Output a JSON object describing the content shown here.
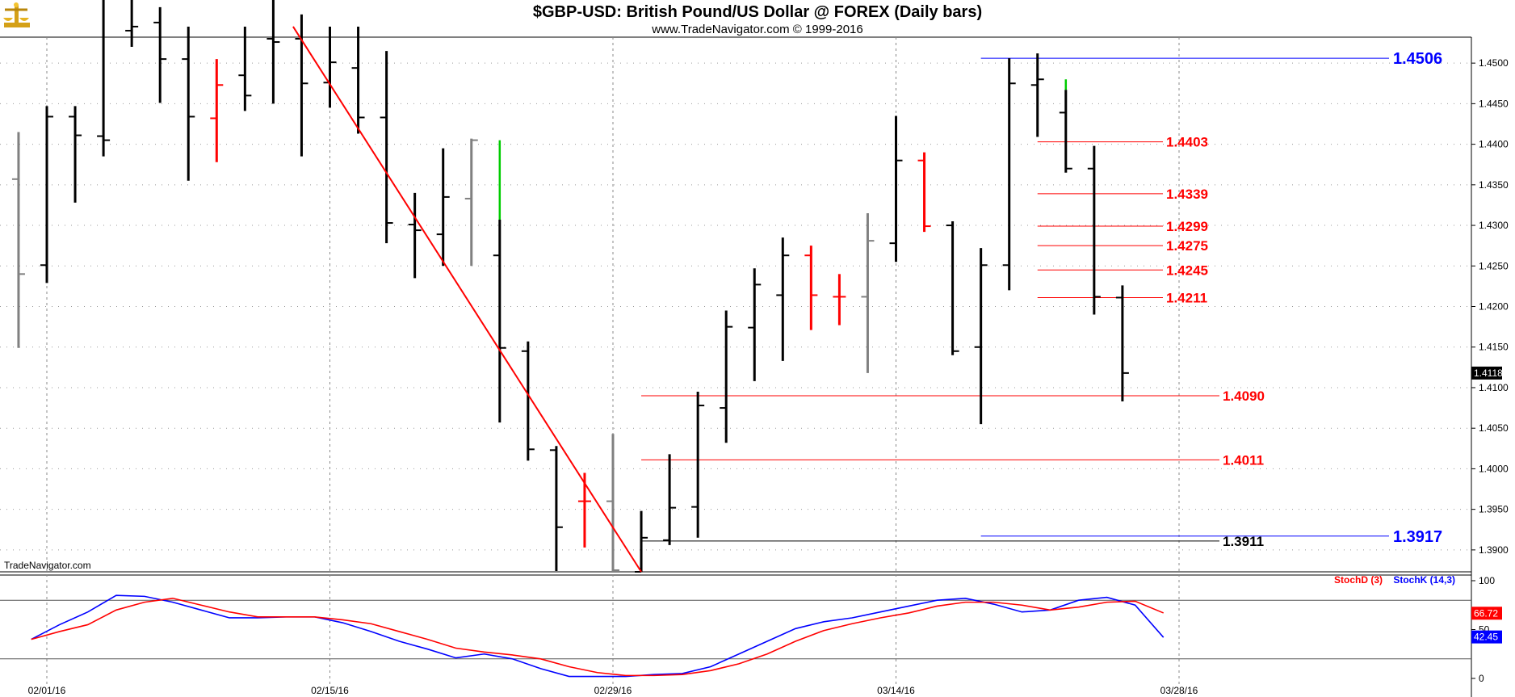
{
  "header": {
    "title": "$GBP-USD:  British Pound/US Dollar @ FOREX  (Daily bars)",
    "subtitle": "www.TradeNavigator.com © 1999-2016"
  },
  "watermark": "TradeNavigator.com",
  "icon": "gold-scale-logo-icon",
  "colors": {
    "up_bar": "#000000",
    "neutral_bar": "#808080",
    "red_bar": "#ff0000",
    "green_tail": "#00cc00",
    "level_red": "#ff0000",
    "level_blue": "#0000ff",
    "stoch_d": "#ff0000",
    "stoch_k": "#0000ff"
  },
  "chart_data": [
    {
      "type": "ohlc",
      "series_name": "$GBP-USD",
      "ylim": [
        1.3873,
        1.4532
      ],
      "y_ticks": [
        "1.4500",
        "1.4450",
        "1.4400",
        "1.4350",
        "1.4300",
        "1.4250",
        "1.4200",
        "1.4150",
        "1.4100",
        "1.4050",
        "1.4000",
        "1.3950",
        "1.3900"
      ],
      "x_ticks": [
        "02/01/16",
        "02/15/16",
        "02/29/16",
        "03/14/16",
        "03/28/16"
      ],
      "last_price": "1.4118",
      "bars": [
        {
          "slot": -1,
          "o": 1.4357,
          "h": 1.4415,
          "l": 1.4149,
          "c": 1.424,
          "col": "gray"
        },
        {
          "slot": 0,
          "o": 1.4251,
          "h": 1.4447,
          "l": 1.4229,
          "c": 1.4434,
          "col": "black"
        },
        {
          "slot": 1,
          "o": 1.4434,
          "h": 1.4447,
          "l": 1.4328,
          "c": 1.4411,
          "col": "black"
        },
        {
          "slot": 2,
          "o": 1.441,
          "h": 1.4617,
          "l": 1.4385,
          "c": 1.4405,
          "col": "black"
        },
        {
          "slot": 3,
          "o": 1.454,
          "h": 1.4617,
          "l": 1.452,
          "c": 1.4545,
          "col": "black"
        },
        {
          "slot": 4,
          "o": 1.455,
          "h": 1.4569,
          "l": 1.4451,
          "c": 1.4505,
          "col": "black"
        },
        {
          "slot": 5,
          "o": 1.4505,
          "h": 1.4545,
          "l": 1.4355,
          "c": 1.4434,
          "col": "black"
        },
        {
          "slot": 6,
          "o": 1.4432,
          "h": 1.4505,
          "l": 1.4378,
          "c": 1.4473,
          "col": "red"
        },
        {
          "slot": 7,
          "o": 1.4485,
          "h": 1.4545,
          "l": 1.4441,
          "c": 1.446,
          "col": "black"
        },
        {
          "slot": 8,
          "o": 1.453,
          "h": 1.461,
          "l": 1.445,
          "c": 1.4526,
          "col": "black"
        },
        {
          "slot": 9,
          "o": 1.453,
          "h": 1.456,
          "l": 1.4385,
          "c": 1.4475,
          "col": "black"
        },
        {
          "slot": 10,
          "o": 1.4476,
          "h": 1.4545,
          "l": 1.4445,
          "c": 1.4501,
          "col": "black"
        },
        {
          "slot": 11,
          "o": 1.4494,
          "h": 1.4545,
          "l": 1.4413,
          "c": 1.4433,
          "col": "black"
        },
        {
          "slot": 12,
          "o": 1.4433,
          "h": 1.4515,
          "l": 1.4278,
          "c": 1.4303,
          "col": "black"
        },
        {
          "slot": 13,
          "o": 1.4301,
          "h": 1.434,
          "l": 1.4235,
          "c": 1.4294,
          "col": "black"
        },
        {
          "slot": 14,
          "o": 1.4289,
          "h": 1.4395,
          "l": 1.425,
          "c": 1.4335,
          "col": "black"
        },
        {
          "slot": 15,
          "o": 1.4333,
          "h": 1.4407,
          "l": 1.425,
          "c": 1.4405,
          "col": "gray"
        },
        {
          "slot": 16,
          "o": 1.4263,
          "h": 1.4307,
          "l": 1.4057,
          "c": 1.4149,
          "col": "black",
          "green_top": 1.4405
        },
        {
          "slot": 17,
          "o": 1.4145,
          "h": 1.4157,
          "l": 1.401,
          "c": 1.4024,
          "col": "black"
        },
        {
          "slot": 18,
          "o": 1.4023,
          "h": 1.4028,
          "l": 1.3874,
          "c": 1.3928,
          "col": "black"
        },
        {
          "slot": 19,
          "o": 1.396,
          "h": 1.3995,
          "l": 1.3903,
          "c": 1.396,
          "col": "red"
        },
        {
          "slot": 20,
          "o": 1.396,
          "h": 1.4043,
          "l": 1.3873,
          "c": 1.3875,
          "col": "gray"
        },
        {
          "slot": 21,
          "o": 1.3873,
          "h": 1.3948,
          "l": 1.3873,
          "c": 1.3915,
          "col": "black"
        },
        {
          "slot": 22,
          "o": 1.3912,
          "h": 1.4018,
          "l": 1.3906,
          "c": 1.3952,
          "col": "black"
        },
        {
          "slot": 23,
          "o": 1.3953,
          "h": 1.4095,
          "l": 1.3915,
          "c": 1.4078,
          "col": "black"
        },
        {
          "slot": 24,
          "o": 1.4075,
          "h": 1.4195,
          "l": 1.4032,
          "c": 1.4175,
          "col": "black"
        },
        {
          "slot": 25,
          "o": 1.4174,
          "h": 1.4247,
          "l": 1.4108,
          "c": 1.4227,
          "col": "black"
        },
        {
          "slot": 26,
          "o": 1.4214,
          "h": 1.4285,
          "l": 1.4133,
          "c": 1.4263,
          "col": "black"
        },
        {
          "slot": 27,
          "o": 1.4263,
          "h": 1.4275,
          "l": 1.4171,
          "c": 1.4214,
          "col": "red"
        },
        {
          "slot": 28,
          "o": 1.4212,
          "h": 1.424,
          "l": 1.4177,
          "c": 1.4212,
          "col": "red"
        },
        {
          "slot": 29,
          "o": 1.4212,
          "h": 1.4315,
          "l": 1.4118,
          "c": 1.4281,
          "col": "gray"
        },
        {
          "slot": 30,
          "o": 1.4278,
          "h": 1.4435,
          "l": 1.4255,
          "c": 1.438,
          "col": "black"
        },
        {
          "slot": 31,
          "o": 1.438,
          "h": 1.439,
          "l": 1.4292,
          "c": 1.4299,
          "col": "red"
        },
        {
          "slot": 32,
          "o": 1.43,
          "h": 1.4305,
          "l": 1.414,
          "c": 1.4145,
          "col": "black"
        },
        {
          "slot": 33,
          "o": 1.415,
          "h": 1.4272,
          "l": 1.4055,
          "c": 1.4251,
          "col": "black"
        },
        {
          "slot": 34,
          "o": 1.4251,
          "h": 1.4506,
          "l": 1.422,
          "c": 1.4475,
          "col": "black"
        },
        {
          "slot": 35,
          "o": 1.4473,
          "h": 1.4512,
          "l": 1.4409,
          "c": 1.448,
          "col": "black"
        },
        {
          "slot": 36,
          "o": 1.4439,
          "h": 1.4467,
          "l": 1.4365,
          "c": 1.437,
          "col": "black",
          "green_top": 1.448
        },
        {
          "slot": 37,
          "o": 1.437,
          "h": 1.4398,
          "l": 1.419,
          "c": 1.4212,
          "col": "black"
        },
        {
          "slot": 38,
          "o": 1.4211,
          "h": 1.4226,
          "l": 1.4083,
          "c": 1.4118,
          "col": "black"
        }
      ],
      "trendline": {
        "from": {
          "slot": 8.7,
          "price": 1.4545
        },
        "to": {
          "slot": 21,
          "price": 1.3873
        }
      },
      "levels": [
        {
          "value": 1.4506,
          "label": "1.4506",
          "color": "blue",
          "from_slot": 33
        },
        {
          "value": 1.4403,
          "label": "1.4403",
          "color": "red",
          "from_slot": 35
        },
        {
          "value": 1.4339,
          "label": "1.4339",
          "color": "red",
          "from_slot": 35
        },
        {
          "value": 1.4299,
          "label": "1.4299",
          "color": "red",
          "from_slot": 35
        },
        {
          "value": 1.4275,
          "label": "1.4275",
          "color": "red",
          "from_slot": 35
        },
        {
          "value": 1.4245,
          "label": "1.4245",
          "color": "red",
          "from_slot": 35
        },
        {
          "value": 1.4211,
          "label": "1.4211",
          "color": "red",
          "from_slot": 35
        },
        {
          "value": 1.409,
          "label": "1.4090",
          "color": "red",
          "from_slot": 21
        },
        {
          "value": 1.4011,
          "label": "1.4011",
          "color": "red",
          "from_slot": 21
        },
        {
          "value": 1.3917,
          "label": "1.3917",
          "color": "blue",
          "from_slot": 33
        },
        {
          "value": 1.3911,
          "label": "1.3911",
          "color": "black",
          "from_slot": 21
        }
      ]
    },
    {
      "type": "line",
      "ylim": [
        0,
        100
      ],
      "y_ticks": [
        "100",
        "50",
        "0"
      ],
      "reference_lines": [
        80,
        20
      ],
      "legend": [
        {
          "name": "StochD (3)",
          "color": "red"
        },
        {
          "name": "StochK (14,3)",
          "color": "blue"
        }
      ],
      "last_values": {
        "stoch_d": "66.72",
        "stoch_k": "42.45"
      },
      "series": [
        {
          "key": "stoch_k",
          "values": [
            {
              "slot": 0,
              "v": 40
            },
            {
              "slot": 1,
              "v": 55
            },
            {
              "slot": 2,
              "v": 68
            },
            {
              "slot": 3,
              "v": 85
            },
            {
              "slot": 4,
              "v": 84
            },
            {
              "slot": 5,
              "v": 78
            },
            {
              "slot": 6,
              "v": 70
            },
            {
              "slot": 7,
              "v": 62
            },
            {
              "slot": 8,
              "v": 62
            },
            {
              "slot": 9,
              "v": 63
            },
            {
              "slot": 10,
              "v": 63
            },
            {
              "slot": 11,
              "v": 57
            },
            {
              "slot": 12,
              "v": 48
            },
            {
              "slot": 13,
              "v": 38
            },
            {
              "slot": 14,
              "v": 30
            },
            {
              "slot": 15,
              "v": 21
            },
            {
              "slot": 16,
              "v": 25
            },
            {
              "slot": 17,
              "v": 20
            },
            {
              "slot": 18,
              "v": 10
            },
            {
              "slot": 19,
              "v": 2
            },
            {
              "slot": 20,
              "v": 2
            },
            {
              "slot": 21,
              "v": 2
            },
            {
              "slot": 22,
              "v": 4
            },
            {
              "slot": 23,
              "v": 5
            },
            {
              "slot": 24,
              "v": 12
            },
            {
              "slot": 25,
              "v": 25
            },
            {
              "slot": 26,
              "v": 38
            },
            {
              "slot": 27,
              "v": 51
            },
            {
              "slot": 28,
              "v": 58
            },
            {
              "slot": 29,
              "v": 62
            },
            {
              "slot": 30,
              "v": 68
            },
            {
              "slot": 31,
              "v": 74
            },
            {
              "slot": 32,
              "v": 80
            },
            {
              "slot": 33,
              "v": 82
            },
            {
              "slot": 34,
              "v": 76
            },
            {
              "slot": 35,
              "v": 68
            },
            {
              "slot": 36,
              "v": 70
            },
            {
              "slot": 37,
              "v": 80
            },
            {
              "slot": 38,
              "v": 83
            },
            {
              "slot": 39,
              "v": 75
            },
            {
              "slot": 40,
              "v": 42
            }
          ]
        },
        {
          "key": "stoch_d",
          "values": [
            {
              "slot": 0,
              "v": 40
            },
            {
              "slot": 1,
              "v": 48
            },
            {
              "slot": 2,
              "v": 55
            },
            {
              "slot": 3,
              "v": 70
            },
            {
              "slot": 4,
              "v": 78
            },
            {
              "slot": 5,
              "v": 82
            },
            {
              "slot": 6,
              "v": 75
            },
            {
              "slot": 7,
              "v": 68
            },
            {
              "slot": 8,
              "v": 63
            },
            {
              "slot": 9,
              "v": 63
            },
            {
              "slot": 10,
              "v": 63
            },
            {
              "slot": 11,
              "v": 60
            },
            {
              "slot": 12,
              "v": 56
            },
            {
              "slot": 13,
              "v": 48
            },
            {
              "slot": 14,
              "v": 40
            },
            {
              "slot": 15,
              "v": 31
            },
            {
              "slot": 16,
              "v": 27
            },
            {
              "slot": 17,
              "v": 24
            },
            {
              "slot": 18,
              "v": 20
            },
            {
              "slot": 19,
              "v": 12
            },
            {
              "slot": 20,
              "v": 6
            },
            {
              "slot": 21,
              "v": 3
            },
            {
              "slot": 22,
              "v": 3
            },
            {
              "slot": 23,
              "v": 4
            },
            {
              "slot": 24,
              "v": 8
            },
            {
              "slot": 25,
              "v": 15
            },
            {
              "slot": 26,
              "v": 25
            },
            {
              "slot": 27,
              "v": 38
            },
            {
              "slot": 28,
              "v": 49
            },
            {
              "slot": 29,
              "v": 56
            },
            {
              "slot": 30,
              "v": 62
            },
            {
              "slot": 31,
              "v": 67
            },
            {
              "slot": 32,
              "v": 74
            },
            {
              "slot": 33,
              "v": 78
            },
            {
              "slot": 34,
              "v": 78
            },
            {
              "slot": 35,
              "v": 75
            },
            {
              "slot": 36,
              "v": 70
            },
            {
              "slot": 37,
              "v": 73
            },
            {
              "slot": 38,
              "v": 78
            },
            {
              "slot": 39,
              "v": 79
            },
            {
              "slot": 40,
              "v": 67
            }
          ]
        }
      ]
    }
  ]
}
